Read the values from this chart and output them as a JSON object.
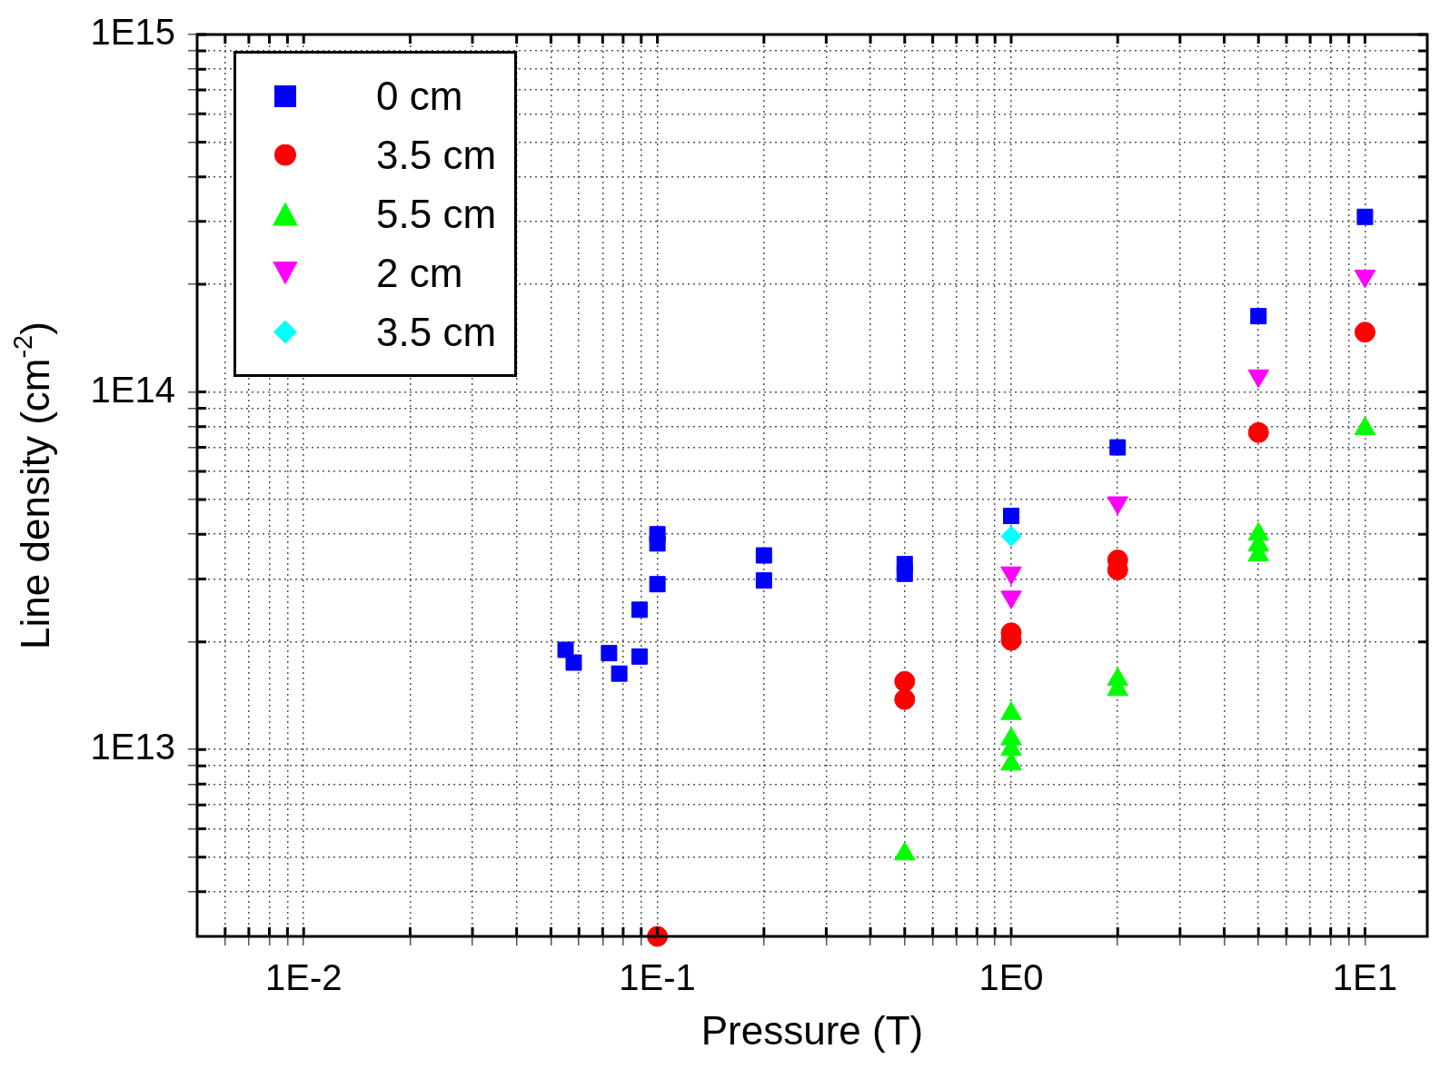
{
  "chart_data": {
    "type": "scatter",
    "xlabel": "Pressure (T)",
    "ylabel": "Line density (cm$^{-2}$)",
    "log": "xy",
    "grid": true,
    "legend": "top left",
    "xlim": [
      0.005,
      15
    ],
    "ylim": [
      3000000000000.0,
      1000000000000000.0
    ],
    "xticks": [
      {
        "value": 0.006,
        "label": null
      },
      {
        "value": 0.007,
        "label": null
      },
      {
        "value": 0.008,
        "label": null
      },
      {
        "value": 0.009,
        "label": null
      },
      {
        "value": 0.01,
        "label": "1E-2"
      },
      {
        "value": 0.02,
        "label": null
      },
      {
        "value": 0.03,
        "label": null
      },
      {
        "value": 0.04,
        "label": null
      },
      {
        "value": 0.05,
        "label": null
      },
      {
        "value": 0.06,
        "label": null
      },
      {
        "value": 0.07,
        "label": null
      },
      {
        "value": 0.08,
        "label": null
      },
      {
        "value": 0.09,
        "label": null
      },
      {
        "value": 0.1,
        "label": "1E-1"
      },
      {
        "value": 0.2,
        "label": null
      },
      {
        "value": 0.3,
        "label": null
      },
      {
        "value": 0.4,
        "label": null
      },
      {
        "value": 0.5,
        "label": null
      },
      {
        "value": 0.6,
        "label": null
      },
      {
        "value": 0.7,
        "label": null
      },
      {
        "value": 0.8,
        "label": null
      },
      {
        "value": 0.9,
        "label": null
      },
      {
        "value": 1,
        "label": "1E0"
      },
      {
        "value": 2,
        "label": null
      },
      {
        "value": 3,
        "label": null
      },
      {
        "value": 4,
        "label": null
      },
      {
        "value": 5,
        "label": null
      },
      {
        "value": 6,
        "label": null
      },
      {
        "value": 7,
        "label": null
      },
      {
        "value": 8,
        "label": null
      },
      {
        "value": 9,
        "label": null
      },
      {
        "value": 10,
        "label": "1E1"
      }
    ],
    "yticks": [
      {
        "value": 4000000000000.0,
        "label": null
      },
      {
        "value": 5000000000000.0,
        "label": null
      },
      {
        "value": 6000000000000.0,
        "label": null
      },
      {
        "value": 7000000000000.0,
        "label": null
      },
      {
        "value": 8000000000000.0,
        "label": null
      },
      {
        "value": 9000000000000.0,
        "label": null
      },
      {
        "value": 10000000000000.0,
        "label": "1E13"
      },
      {
        "value": 20000000000000.0,
        "label": null
      },
      {
        "value": 30000000000000.0,
        "label": null
      },
      {
        "value": 40000000000000.0,
        "label": null
      },
      {
        "value": 50000000000000.0,
        "label": null
      },
      {
        "value": 60000000000000.0,
        "label": null
      },
      {
        "value": 70000000000000.0,
        "label": null
      },
      {
        "value": 80000000000000.0,
        "label": null
      },
      {
        "value": 90000000000000.0,
        "label": null
      },
      {
        "value": 100000000000000.0,
        "label": "1E14"
      },
      {
        "value": 200000000000000.0,
        "label": null
      },
      {
        "value": 300000000000000.0,
        "label": null
      },
      {
        "value": 400000000000000.0,
        "label": null
      },
      {
        "value": 500000000000000.0,
        "label": null
      },
      {
        "value": 600000000000000.0,
        "label": null
      },
      {
        "value": 700000000000000.0,
        "label": null
      },
      {
        "value": 800000000000000.0,
        "label": null
      },
      {
        "value": 900000000000000.0,
        "label": null
      },
      {
        "value": 1000000000000000.0,
        "label": "1E15"
      }
    ],
    "series": [
      {
        "name": "0 cm",
        "color": "#0000ff",
        "marker": "square",
        "x": [
          0.055,
          0.058,
          0.073,
          0.078,
          0.089,
          0.089,
          0.1,
          0.1,
          0.1,
          0.2,
          0.2,
          0.5,
          0.5,
          1,
          2,
          5,
          10
        ],
        "values": [
          19000000000000.0,
          17500000000000.0,
          18600000000000.0,
          16300000000000.0,
          18200000000000.0,
          24600000000000.0,
          40000000000000.0,
          37700000000000.0,
          29000000000000.0,
          34900000000000.0,
          29700000000000.0,
          33000000000000.0,
          31000000000000.0,
          45000000000000.0,
          70000000000000.0,
          163000000000000.0,
          309000000000000.0
        ]
      },
      {
        "name": "3.5 cm",
        "color": "#ff0000",
        "marker": "circle",
        "x": [
          0.1,
          0.5,
          0.5,
          1,
          1,
          2,
          2,
          5,
          10
        ],
        "values": [
          3000000000000.0,
          15500000000000.0,
          13800000000000.0,
          21200000000000.0,
          20200000000000.0,
          33900000000000.0,
          31800000000000.0,
          77000000000000.0,
          147000000000000.0
        ]
      },
      {
        "name": "5.5 cm",
        "color": "#00ff00",
        "marker": "triangle",
        "x": [
          0.5,
          1,
          1,
          1,
          1,
          2,
          2,
          5,
          5,
          5,
          10
        ],
        "values": [
          5100000000000.0,
          12600000000000.0,
          10700000000000.0,
          10000000000000.0,
          9100000000000.0,
          15700000000000.0,
          14700000000000.0,
          40000000000000.0,
          37300000000000.0,
          35000000000000.0,
          79000000000000.0
        ]
      },
      {
        "name": "2 cm",
        "color": "#ff00ff",
        "marker": "triangle-down",
        "x": [
          1,
          1,
          2,
          5,
          10
        ],
        "values": [
          31200000000000.0,
          26700000000000.0,
          49000000000000.0,
          111000000000000.0,
          211000000000000.0
        ]
      },
      {
        "name": "3.5 cm",
        "color": "#00ffff",
        "marker": "diamond",
        "x": [
          1
        ],
        "values": [
          39500000000000.0
        ]
      }
    ]
  }
}
